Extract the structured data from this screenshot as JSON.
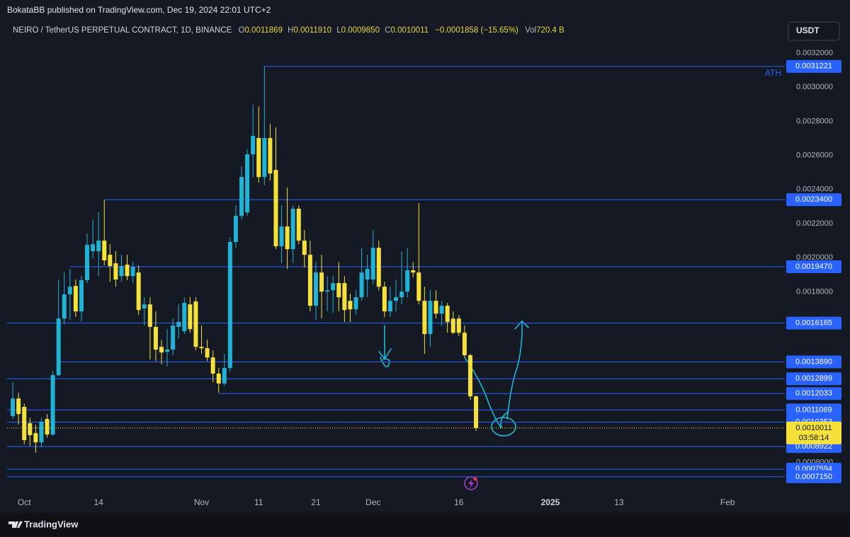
{
  "header": {
    "publisher": "BokataBB published on TradingView.com, Dec 19, 2024 22:01 UTC+2"
  },
  "legend": {
    "symbol": "NEIRO / TetherUS PERPETUAL CONTRACT, 1D, BINANCE",
    "open_label": "O",
    "open": "0.0011869",
    "high_label": "H",
    "high": "0.0011910",
    "low_label": "L",
    "low": "0.0009850",
    "close_label": "C",
    "close": "0.0010011",
    "change": "−0.0001858 (−15.65%)",
    "volume_label": "Vol",
    "volume": "720.4 B"
  },
  "currency": "USDT",
  "footer": "TradingView",
  "chart_data": {
    "type": "candlestick",
    "up_color": "#22b3d4",
    "down_color": "#f5e13a",
    "level_color": "#2962ff",
    "last_color": "#f5e13a",
    "grid": false,
    "xlim": [
      "2024-09-28",
      "2025-02-11"
    ],
    "ylim": [
      0.000619,
      0.003387
    ],
    "xticks": [
      {
        "value": "2024-10-01",
        "label": "Oct"
      },
      {
        "value": "2024-10-14",
        "label": "14"
      },
      {
        "value": "2024-11-01",
        "label": "Nov"
      },
      {
        "value": "2024-11-11",
        "label": "11"
      },
      {
        "value": "2024-11-21",
        "label": "21"
      },
      {
        "value": "2024-12-01",
        "label": "Dec"
      },
      {
        "value": "2024-12-16",
        "label": "16"
      },
      {
        "value": "2025-01-01",
        "label": "2025"
      },
      {
        "value": "2025-01-13",
        "label": "13"
      },
      {
        "value": "2025-02-01",
        "label": "Feb"
      }
    ],
    "yticks": [
      {
        "value": 0.0008,
        "label": "0.0008000"
      },
      {
        "value": 0.001,
        "label": "0.0010000"
      },
      {
        "value": 0.0012,
        "label": "0.0012000"
      },
      {
        "value": 0.0014,
        "label": "0.0014000"
      },
      {
        "value": 0.0016,
        "label": "0.0016000"
      },
      {
        "value": 0.0018,
        "label": "0.0018000"
      },
      {
        "value": 0.002,
        "label": "0.0020000"
      },
      {
        "value": 0.0022,
        "label": "0.0022000"
      },
      {
        "value": 0.0024,
        "label": "0.0024000"
      },
      {
        "value": 0.0026,
        "label": "0.0026000"
      },
      {
        "value": 0.0028,
        "label": "0.0028000"
      },
      {
        "value": 0.003,
        "label": "0.0030000"
      },
      {
        "value": 0.0032,
        "label": "0.0032000"
      }
    ],
    "x": [
      "2024-09-29",
      "2024-09-30",
      "2024-10-01",
      "2024-10-02",
      "2024-10-03",
      "2024-10-04",
      "2024-10-05",
      "2024-10-06",
      "2024-10-07",
      "2024-10-08",
      "2024-10-09",
      "2024-10-10",
      "2024-10-11",
      "2024-10-12",
      "2024-10-13",
      "2024-10-14",
      "2024-10-15",
      "2024-10-16",
      "2024-10-17",
      "2024-10-18",
      "2024-10-19",
      "2024-10-20",
      "2024-10-21",
      "2024-10-22",
      "2024-10-23",
      "2024-10-24",
      "2024-10-25",
      "2024-10-26",
      "2024-10-27",
      "2024-10-28",
      "2024-10-29",
      "2024-10-30",
      "2024-10-31",
      "2024-11-01",
      "2024-11-02",
      "2024-11-03",
      "2024-11-04",
      "2024-11-05",
      "2024-11-06",
      "2024-11-07",
      "2024-11-08",
      "2024-11-09",
      "2024-11-10",
      "2024-11-11",
      "2024-11-12",
      "2024-11-13",
      "2024-11-14",
      "2024-11-15",
      "2024-11-16",
      "2024-11-17",
      "2024-11-18",
      "2024-11-19",
      "2024-11-20",
      "2024-11-21",
      "2024-11-22",
      "2024-11-23",
      "2024-11-24",
      "2024-11-25",
      "2024-11-26",
      "2024-11-27",
      "2024-11-28",
      "2024-11-29",
      "2024-11-30",
      "2024-12-01",
      "2024-12-02",
      "2024-12-03",
      "2024-12-04",
      "2024-12-05",
      "2024-12-06",
      "2024-12-07",
      "2024-12-08",
      "2024-12-09",
      "2024-12-10",
      "2024-12-11",
      "2024-12-12",
      "2024-12-13",
      "2024-12-14",
      "2024-12-15",
      "2024-12-16",
      "2024-12-17",
      "2024-12-18",
      "2024-12-19"
    ],
    "open": [
      0.001071,
      0.001174,
      0.001125,
      0.001029,
      0.000971,
      0.000917,
      0.001054,
      0.000963,
      0.001311,
      0.001643,
      0.001785,
      0.001834,
      0.001685,
      0.001868,
      0.002038,
      0.002038,
      0.0021,
      0.002017,
      0.001967,
      0.001892,
      0.001959,
      0.001892,
      0.001913,
      0.001702,
      0.001726,
      0.001594,
      0.001477,
      0.001448,
      0.001461,
      0.001594,
      0.001569,
      0.001726,
      0.001743,
      0.001477,
      0.001469,
      0.001415,
      0.00132,
      0.001262,
      0.001353,
      0.002092,
      0.002245,
      0.002266,
      0.002606,
      0.002702,
      0.002473,
      0.002702,
      0.002515,
      0.002067,
      0.002183,
      0.00205,
      0.002287,
      0.0021,
      0.002017,
      0.001718,
      0.001913,
      0.001801,
      0.001809,
      0.001851,
      0.001851,
      0.001747,
      0.001697,
      0.001768,
      0.001872,
      0.001872,
      0.002058,
      0.00183,
      0.001685,
      0.001747,
      0.001768,
      0.001801,
      0.001926,
      0.001913,
      0.001747,
      0.001552,
      0.001747,
      0.001672,
      0.001718,
      0.001643,
      0.001643,
      0.00156,
      0.001428,
      0.0011869
    ],
    "high": [
      0.00127,
      0.001208,
      0.001145,
      0.001062,
      0.001021,
      0.001062,
      0.001083,
      0.001336,
      0.001872,
      0.001913,
      0.001934,
      0.001872,
      0.001892,
      0.002141,
      0.002224,
      0.002266,
      0.00234,
      0.002079,
      0.002038,
      0.002017,
      0.002017,
      0.001975,
      0.001955,
      0.001768,
      0.001768,
      0.001685,
      0.001519,
      0.001581,
      0.001643,
      0.001726,
      0.001768,
      0.001768,
      0.001768,
      0.001602,
      0.001519,
      0.001457,
      0.001353,
      0.001436,
      0.002121,
      0.002307,
      0.002536,
      0.002639,
      0.002897,
      0.002888,
      0.0031221,
      0.002785,
      0.002764,
      0.002307,
      0.002411,
      0.002307,
      0.002307,
      0.002162,
      0.0021,
      0.001975,
      0.002017,
      0.001892,
      0.001892,
      0.001975,
      0.001892,
      0.001789,
      0.001809,
      0.002058,
      0.002017,
      0.002162,
      0.0021,
      0.001859,
      0.00183,
      0.001872,
      0.002038,
      0.002058,
      0.001975,
      0.00232,
      0.00183,
      0.001809,
      0.001809,
      0.001747,
      0.001735,
      0.001685,
      0.001664,
      0.001602,
      0.001436,
      0.001191
    ],
    "low": [
      0.001054,
      0.001021,
      0.000905,
      0.000896,
      0.000855,
      0.000888,
      0.000946,
      0.000955,
      0.001303,
      0.00161,
      0.001635,
      0.001652,
      0.001627,
      0.001851,
      0.001996,
      0.001892,
      0.001955,
      0.001859,
      0.00183,
      0.001859,
      0.001868,
      0.001851,
      0.001664,
      0.001602,
      0.001403,
      0.001394,
      0.001374,
      0.001361,
      0.001428,
      0.001527,
      0.001552,
      0.00156,
      0.001457,
      0.001436,
      0.001394,
      0.00127,
      0.001208,
      0.001249,
      0.001332,
      0.002058,
      0.002224,
      0.002245,
      0.002473,
      0.00244,
      0.002424,
      0.002453,
      0.00205,
      0.001967,
      0.001934,
      0.001967,
      0.002079,
      0.001942,
      0.001685,
      0.001635,
      0.001643,
      0.001685,
      0.001677,
      0.001685,
      0.001623,
      0.001623,
      0.001664,
      0.001747,
      0.001768,
      0.001843,
      0.001809,
      0.001652,
      0.001652,
      0.001685,
      0.001726,
      0.001768,
      0.001884,
      0.001726,
      0.001436,
      0.001477,
      0.001643,
      0.001602,
      0.00156,
      0.001552,
      0.00154,
      0.001415,
      0.001166,
      0.000985
    ],
    "close": [
      0.001174,
      0.001083,
      0.00093,
      0.000959,
      0.000917,
      0.001038,
      0.000963,
      0.001311,
      0.001643,
      0.001785,
      0.00183,
      0.001685,
      0.001868,
      0.002075,
      0.002079,
      0.0021,
      0.001984,
      0.001951,
      0.001872,
      0.001951,
      0.001892,
      0.001946,
      0.001693,
      0.001726,
      0.001594,
      0.001461,
      0.001444,
      0.001461,
      0.001602,
      0.001623,
      0.001735,
      0.001581,
      0.001477,
      0.001469,
      0.001415,
      0.00132,
      0.001262,
      0.001353,
      0.002092,
      0.002245,
      0.002473,
      0.002606,
      0.002714,
      0.002473,
      0.002702,
      0.002494,
      0.002067,
      0.002183,
      0.00205,
      0.002287,
      0.0021,
      0.002017,
      0.001718,
      0.001913,
      0.001801,
      0.001809,
      0.001851,
      0.001768,
      0.001693,
      0.001697,
      0.001768,
      0.001913,
      0.001934,
      0.002058,
      0.00183,
      0.001685,
      0.001747,
      0.001768,
      0.001801,
      0.001926,
      0.001913,
      0.001747,
      0.001552,
      0.001747,
      0.001672,
      0.001718,
      0.001623,
      0.00156,
      0.00156,
      0.001428,
      0.0011869,
      0.0010011
    ],
    "price_lines": {
      "values": [
        0.0031221,
        0.00234,
        0.001947,
        0.0016165,
        0.001389,
        0.0012899,
        0.0012033,
        0.0011069,
        0.0010353,
        0.0008922,
        0.0007594,
        0.000715
      ],
      "value_labels": [
        "0.0031221",
        "0.0023400",
        "0.0019470",
        "0.0016165",
        "0.0013890",
        "0.0012899",
        "0.0012033",
        "0.0011069",
        "0.0010353",
        "0.0008922",
        "0.0007594",
        "0.0007150"
      ],
      "starts": [
        "2024-11-12",
        "2024-10-15",
        "2024-10-09",
        null,
        "2024-10-07",
        null,
        "2024-11-04",
        null,
        null,
        null,
        null,
        null
      ]
    },
    "last_price_label": "0.0010011",
    "countdown": "03:58:14",
    "annotation": "ATH"
  }
}
